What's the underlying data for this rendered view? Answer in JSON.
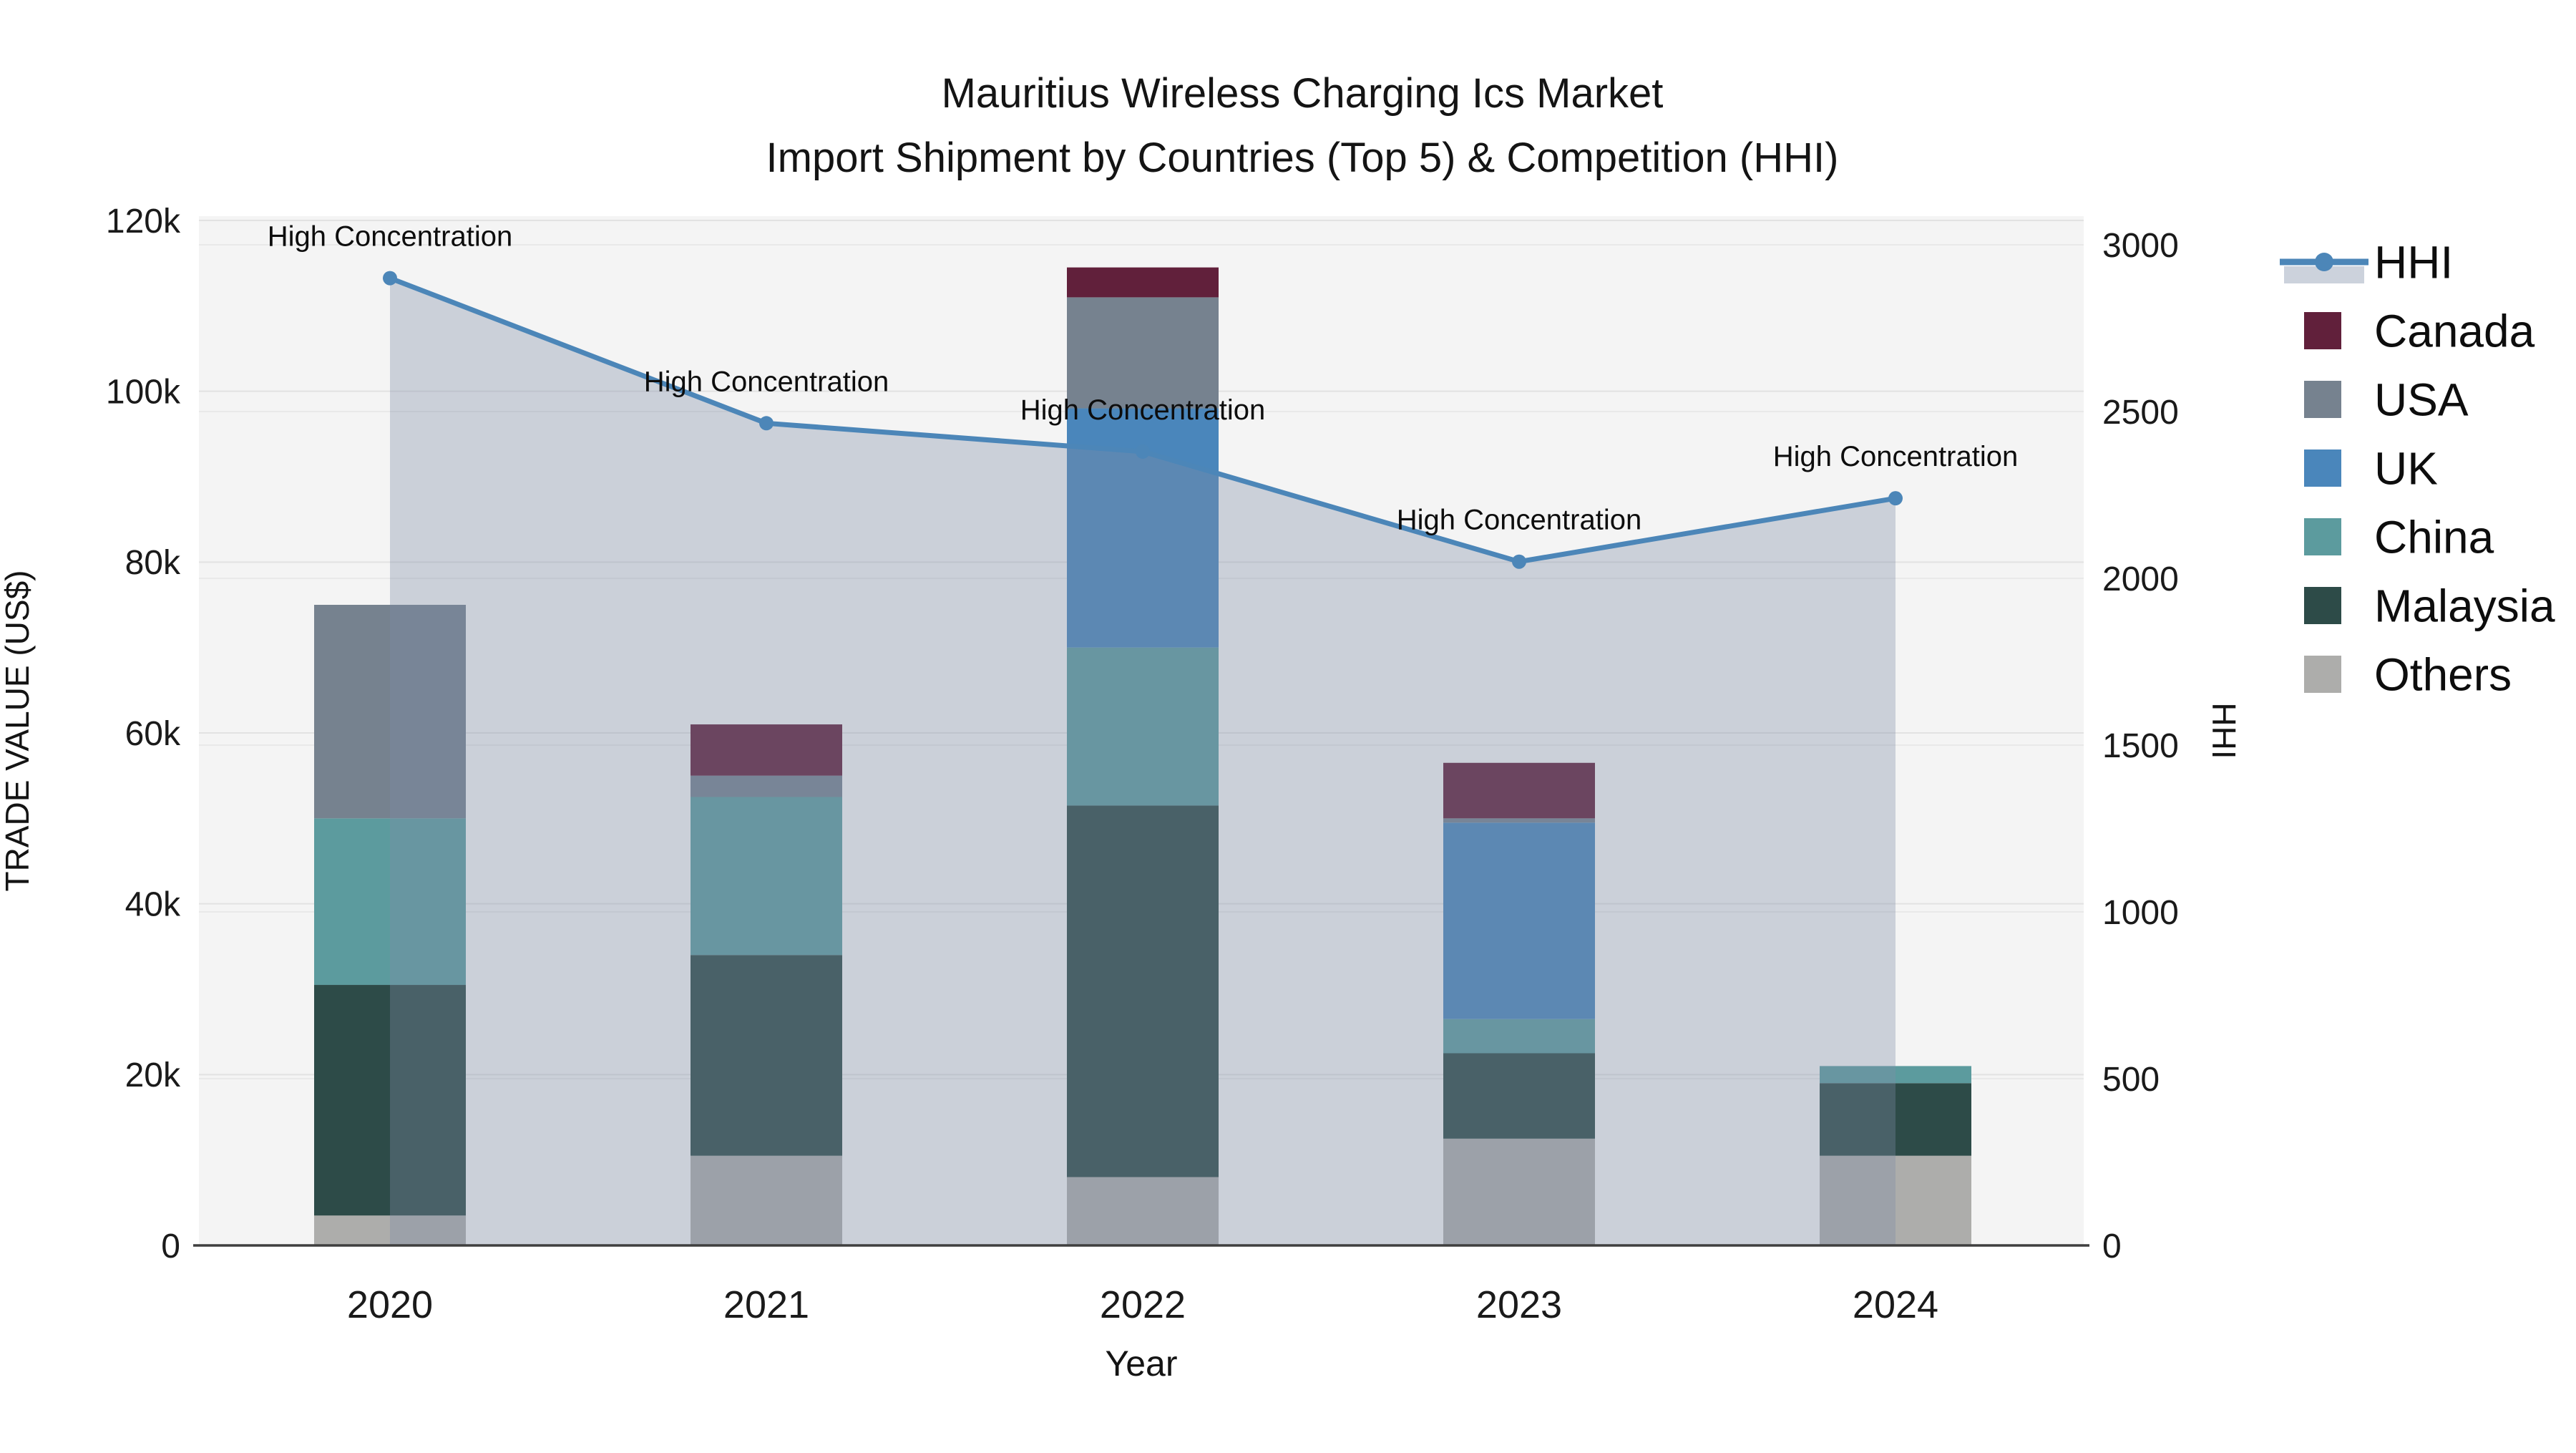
{
  "chart_data": {
    "type": "bar",
    "subtype": "stacked-bars-with-line-overlay",
    "title_line1": "Mauritius Wireless Charging Ics Market",
    "title_line2": "Import Shipment by Countries (Top 5) & Competition (HHI)",
    "xlabel": "Year",
    "ylabel_left": "TRADE VALUE (US$)",
    "ylabel_right": "HHI",
    "categories": [
      "2020",
      "2021",
      "2022",
      "2023",
      "2024"
    ],
    "series": [
      {
        "name": "Others",
        "color": "#ADADAB",
        "values": [
          3500,
          10500,
          8000,
          12500,
          10500
        ]
      },
      {
        "name": "Malaysia",
        "color": "#2D4B48",
        "values": [
          27000,
          23500,
          43500,
          10000,
          8500
        ]
      },
      {
        "name": "China",
        "color": "#5C9B9E",
        "values": [
          19500,
          18500,
          18500,
          4000,
          2000
        ]
      },
      {
        "name": "UK",
        "color": "#4A86BB",
        "values": [
          0,
          0,
          28000,
          23000,
          0
        ]
      },
      {
        "name": "USA",
        "color": "#76828F",
        "values": [
          25000,
          2500,
          13000,
          500,
          0
        ]
      },
      {
        "name": "Canada",
        "color": "#61203B",
        "values": [
          0,
          6000,
          3500,
          6500,
          0
        ]
      }
    ],
    "bar_totals": [
      75000,
      61000,
      114500,
      56500,
      21000
    ],
    "hhi": {
      "name": "HHI",
      "line_color": "#4C86B8",
      "area_fill": "rgba(127,141,167,0.35)",
      "values": [
        2900,
        2465,
        2380,
        2050,
        2240
      ]
    },
    "annotations": [
      {
        "year": "2020",
        "label": "High Concentration"
      },
      {
        "year": "2021",
        "label": "High Concentration"
      },
      {
        "year": "2022",
        "label": "High Concentration"
      },
      {
        "year": "2023",
        "label": "High Concentration"
      },
      {
        "year": "2024",
        "label": "High Concentration"
      }
    ],
    "y_left": {
      "min": 0,
      "max": 120000,
      "tick_labels": [
        "0",
        "20k",
        "40k",
        "60k",
        "80k",
        "100k",
        "120k"
      ]
    },
    "y_right": {
      "min": 0,
      "max": 3000,
      "tick_labels": [
        "0",
        "500",
        "1000",
        "1500",
        "2000",
        "2500",
        "3000"
      ]
    },
    "legend_entries": [
      "HHI",
      "Canada",
      "USA",
      "UK",
      "China",
      "Malaysia",
      "Others"
    ],
    "legend_position": "right",
    "grid": "on"
  },
  "colors": {
    "plot_bg": "#F4F4F4",
    "grid_left": "#E2E2E2",
    "grid_right": "#E9E9E9",
    "axis_line": "#3F3F3F",
    "text": "#141414"
  }
}
